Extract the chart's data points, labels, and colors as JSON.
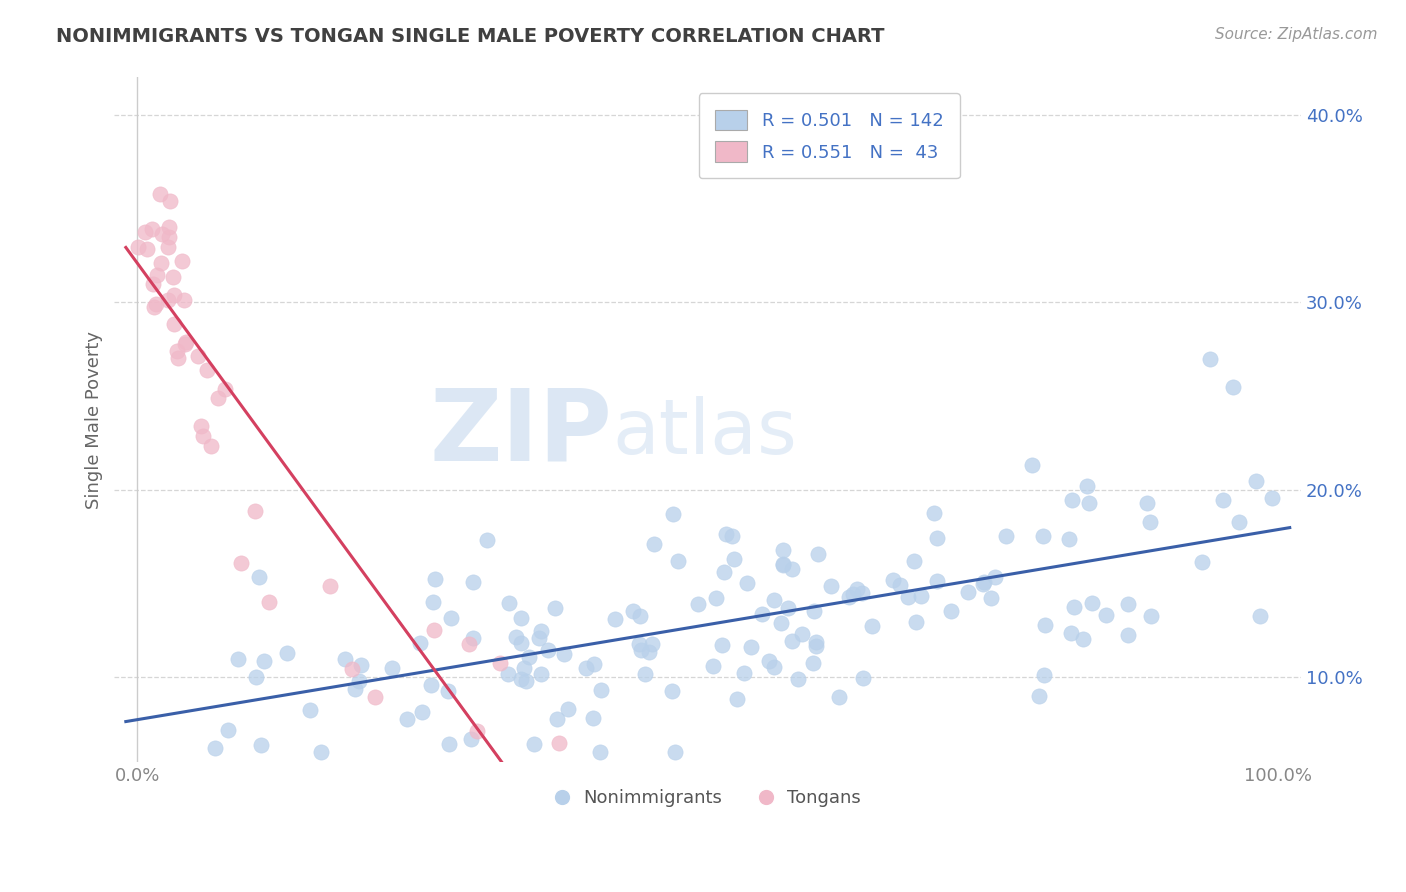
{
  "title": "NONIMMIGRANTS VS TONGAN SINGLE MALE POVERTY CORRELATION CHART",
  "source_text": "Source: ZipAtlas.com",
  "ylabel": "Single Male Poverty",
  "xlim": [
    -0.02,
    1.02
  ],
  "ylim": [
    0.055,
    0.42
  ],
  "y_ticks": [
    0.1,
    0.2,
    0.3,
    0.4
  ],
  "y_tick_labels": [
    "10.0%",
    "20.0%",
    "30.0%",
    "40.0%"
  ],
  "x_ticks": [
    0.0,
    1.0
  ],
  "x_tick_labels": [
    "0.0%",
    "100.0%"
  ],
  "nonimmigrant_color": "#b8d0ea",
  "tongan_color": "#f0b8c8",
  "trendline_nonimmigrant_color": "#3a5fa8",
  "trendline_tongan_color": "#d44060",
  "watermark_zip": "ZIP",
  "watermark_atlas": "atlas",
  "background_color": "#ffffff",
  "grid_color": "#cccccc",
  "title_color": "#404040",
  "axis_label_color": "#4472c4",
  "R_nonimmigrant": 0.501,
  "N_nonimmigrant": 142,
  "R_tongan": 0.551,
  "N_tongan": 43,
  "legend_bottom": [
    "Nonimmigrants",
    "Tongans"
  ]
}
